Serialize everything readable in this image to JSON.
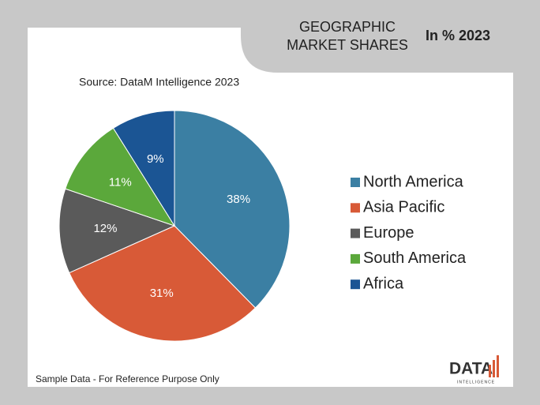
{
  "chart_data": {
    "type": "pie",
    "title_lines": [
      "GEOGRAPHIC",
      "MARKET SHARES"
    ],
    "subtitle": "In % 2023",
    "source": "Source: DataM Intelligence 2023",
    "footnote": "Sample Data - For Reference Purpose Only",
    "logo": {
      "text": "DATA",
      "tagline": "INTELLIGENCE"
    },
    "categories": [
      "North America",
      "Asia Pacific",
      "Europe",
      "South America",
      "Africa"
    ],
    "values": [
      38,
      31,
      12,
      11,
      9
    ],
    "value_labels": [
      "38%",
      "31%",
      "12%",
      "11%",
      "9%"
    ],
    "colors": [
      "#3b7fa3",
      "#d85a37",
      "#5a5a5a",
      "#5ba83b",
      "#1b5594"
    ],
    "legend": "right"
  }
}
